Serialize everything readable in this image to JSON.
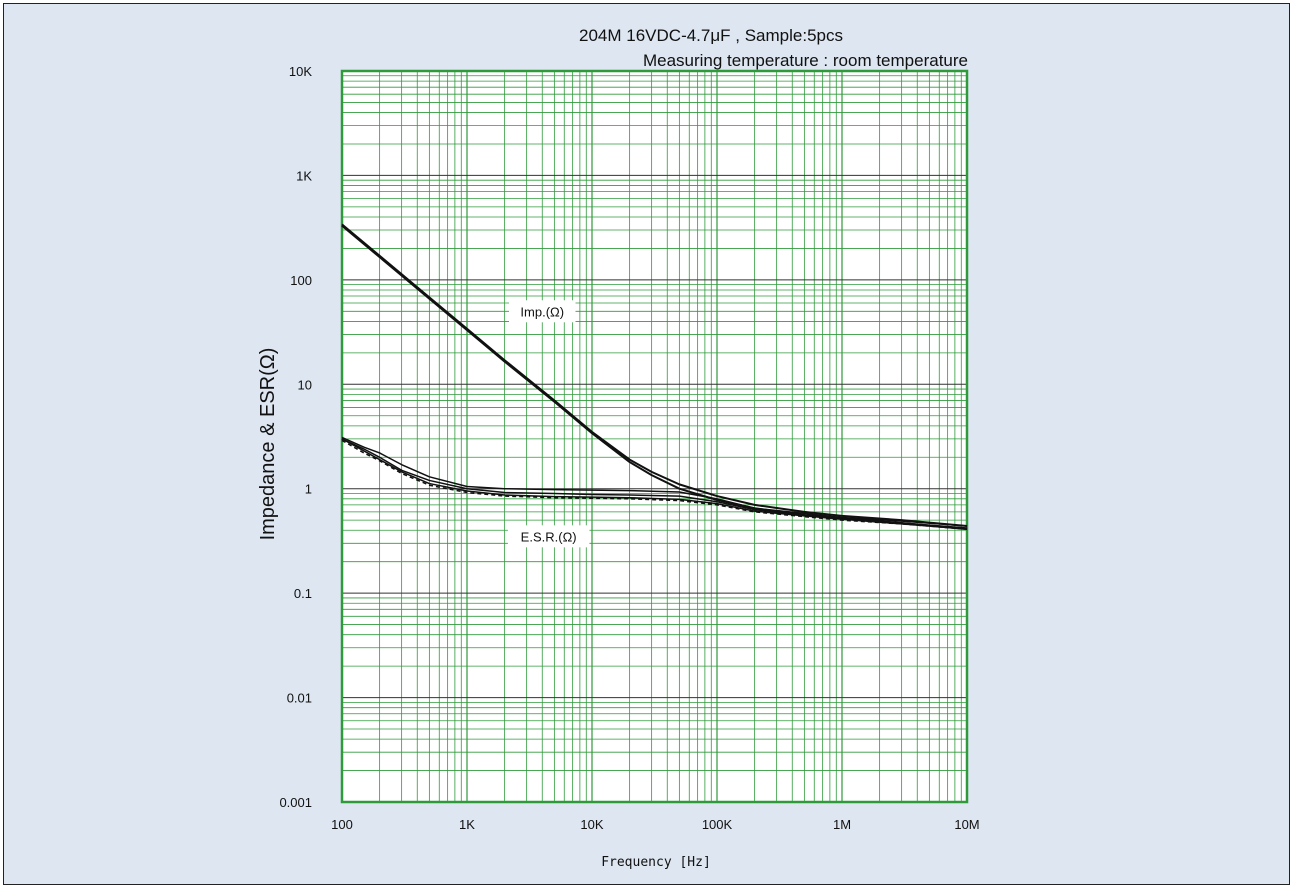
{
  "chart_data": {
    "type": "line",
    "title": "204M 16VDC-4.7μF , Sample:5pcs",
    "subtitle": "Measuring temperature : room temperature",
    "xlabel": "Frequency [Hz]",
    "ylabel": "Impedance & ESR(Ω)",
    "xscale": "log",
    "yscale": "log",
    "xlim": [
      100,
      10000000
    ],
    "ylim": [
      0.001,
      10000
    ],
    "grid": true,
    "x_ticks": [
      {
        "value": 100,
        "label": "100"
      },
      {
        "value": 1000,
        "label": "1K"
      },
      {
        "value": 10000,
        "label": "10K"
      },
      {
        "value": 100000,
        "label": "100K"
      },
      {
        "value": 1000000,
        "label": "1M"
      },
      {
        "value": 10000000,
        "label": "10M"
      }
    ],
    "y_ticks": [
      {
        "value": 0.001,
        "label": "0.001"
      },
      {
        "value": 0.01,
        "label": "0.01"
      },
      {
        "value": 0.1,
        "label": "0.1"
      },
      {
        "value": 1,
        "label": "1"
      },
      {
        "value": 10,
        "label": "10"
      },
      {
        "value": 100,
        "label": "100"
      },
      {
        "value": 1000,
        "label": "1K"
      },
      {
        "value": 10000,
        "label": "10K"
      }
    ],
    "annotations": [
      {
        "text": "Imp.(Ω)",
        "x": 4000,
        "y": 50
      },
      {
        "text": "E.S.R.(Ω)",
        "x": 4500,
        "y": 0.35
      }
    ],
    "series": [
      {
        "group": "impedance",
        "style": "solid",
        "x": [
          100,
          200,
          500,
          1000,
          2000,
          5000,
          10000,
          20000,
          30000,
          50000,
          100000,
          200000,
          500000,
          1000000,
          3000000,
          10000000
        ],
        "y": [
          340,
          170,
          68,
          34,
          17,
          7,
          3.5,
          1.9,
          1.45,
          1.1,
          0.85,
          0.7,
          0.6,
          0.55,
          0.5,
          0.44
        ]
      },
      {
        "group": "impedance",
        "style": "solid",
        "x": [
          100,
          200,
          500,
          1000,
          2000,
          5000,
          10000,
          20000,
          30000,
          50000,
          100000,
          200000,
          500000,
          1000000,
          3000000,
          10000000
        ],
        "y": [
          330,
          165,
          66,
          33,
          16.5,
          6.8,
          3.4,
          1.8,
          1.35,
          1.0,
          0.78,
          0.65,
          0.56,
          0.52,
          0.47,
          0.41
        ]
      },
      {
        "group": "esr",
        "style": "solid",
        "x": [
          100,
          150,
          200,
          300,
          500,
          1000,
          2000,
          5000,
          10000,
          20000,
          50000,
          100000,
          200000,
          500000,
          1000000,
          3000000,
          10000000
        ],
        "y": [
          3.1,
          2.5,
          2.2,
          1.7,
          1.3,
          1.05,
          1.0,
          0.98,
          0.97,
          0.96,
          0.93,
          0.8,
          0.65,
          0.58,
          0.53,
          0.49,
          0.44
        ]
      },
      {
        "group": "esr",
        "style": "solid",
        "x": [
          100,
          150,
          200,
          300,
          500,
          1000,
          2000,
          5000,
          10000,
          20000,
          50000,
          100000,
          200000,
          500000,
          1000000,
          3000000,
          10000000
        ],
        "y": [
          3.0,
          2.4,
          2.0,
          1.5,
          1.2,
          1.0,
          0.92,
          0.9,
          0.88,
          0.87,
          0.85,
          0.75,
          0.63,
          0.56,
          0.52,
          0.47,
          0.42
        ]
      },
      {
        "group": "esr",
        "style": "solid",
        "x": [
          100,
          150,
          200,
          300,
          500,
          1000,
          2000,
          5000,
          10000,
          20000,
          50000,
          100000,
          200000,
          500000,
          1000000,
          3000000,
          10000000
        ],
        "y": [
          3.0,
          2.3,
          1.9,
          1.45,
          1.12,
          0.95,
          0.87,
          0.84,
          0.83,
          0.82,
          0.79,
          0.72,
          0.61,
          0.55,
          0.51,
          0.46,
          0.41
        ]
      },
      {
        "group": "esr",
        "style": "dashed",
        "x": [
          100,
          150,
          200,
          300,
          500,
          1000,
          2000,
          5000,
          10000,
          20000,
          50000,
          100000,
          200000,
          500000,
          1000000,
          3000000,
          10000000
        ],
        "y": [
          2.9,
          2.2,
          1.85,
          1.4,
          1.08,
          0.92,
          0.85,
          0.82,
          0.81,
          0.8,
          0.77,
          0.7,
          0.6,
          0.54,
          0.5,
          0.46,
          0.41
        ]
      }
    ]
  }
}
